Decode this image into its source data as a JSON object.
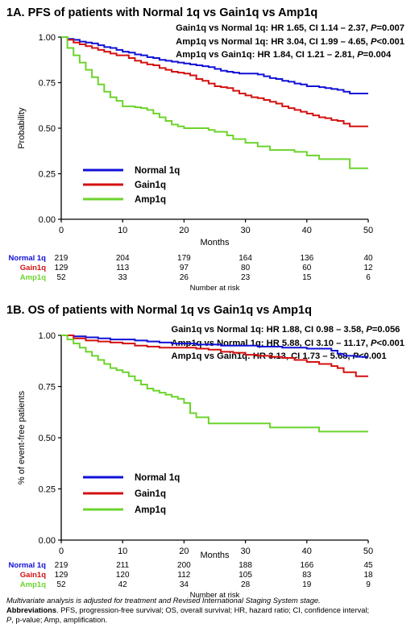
{
  "panels": [
    {
      "id": "A",
      "title": "1A. PFS of patients with Normal 1q vs Gain1q vs Amp1q",
      "stats": [
        {
          "text": "Gain1q vs Normal 1q: HR 1.65, CI 1.14 – 2.37, ",
          "p_label": "P",
          "p_value": "=0.007"
        },
        {
          "text": "Amp1q vs Normal 1q: HR 3.04, CI 1.99 – 4.65, ",
          "p_label": "P",
          "p_value": "<0.001"
        },
        {
          "text": "Amp1q vs Gain1q: HR 1.84, CI 1.21 – 2.81, ",
          "p_label": "P",
          "p_value": "=0.004"
        }
      ],
      "chart_data": {
        "type": "line",
        "step": true,
        "xlabel": "Months",
        "ylabel": "Probability",
        "xlim": [
          0,
          50
        ],
        "ylim": [
          0,
          1
        ],
        "xticks": [
          0,
          10,
          20,
          30,
          40,
          50
        ],
        "yticks": [
          "0.00",
          "0.25",
          "0.50",
          "0.75",
          "1.00"
        ],
        "grid": false,
        "legend": "bottom-left",
        "series": [
          {
            "name": "Normal 1q",
            "color": "#1010d8",
            "x": [
              0,
              1,
              2,
              3,
              4,
              5,
              6,
              7,
              8,
              9,
              10,
              11,
              12,
              13,
              14,
              15,
              16,
              17,
              18,
              19,
              20,
              21,
              22,
              23,
              24,
              25,
              26,
              27,
              28,
              29,
              30,
              31,
              32,
              33,
              34,
              35,
              36,
              37,
              38,
              39,
              40,
              41,
              42,
              43,
              44,
              45,
              46,
              47,
              48,
              49,
              50
            ],
            "y": [
              1.0,
              0.99,
              0.985,
              0.975,
              0.97,
              0.965,
              0.955,
              0.945,
              0.94,
              0.93,
              0.92,
              0.915,
              0.905,
              0.9,
              0.89,
              0.885,
              0.875,
              0.87,
              0.865,
              0.86,
              0.855,
              0.85,
              0.845,
              0.84,
              0.835,
              0.825,
              0.815,
              0.81,
              0.805,
              0.8,
              0.8,
              0.8,
              0.795,
              0.785,
              0.775,
              0.77,
              0.76,
              0.755,
              0.745,
              0.74,
              0.73,
              0.73,
              0.725,
              0.72,
              0.715,
              0.71,
              0.7,
              0.69,
              0.69,
              0.69,
              0.69
            ]
          },
          {
            "name": "Gain1q",
            "color": "#d41010",
            "x": [
              0,
              1,
              2,
              3,
              4,
              5,
              6,
              7,
              8,
              9,
              10,
              11,
              12,
              13,
              14,
              15,
              16,
              17,
              18,
              19,
              20,
              21,
              22,
              23,
              24,
              25,
              26,
              27,
              28,
              29,
              30,
              31,
              32,
              33,
              34,
              35,
              36,
              37,
              38,
              39,
              40,
              41,
              42,
              43,
              44,
              45,
              46,
              47,
              48,
              49,
              50
            ],
            "y": [
              1.0,
              0.985,
              0.97,
              0.96,
              0.95,
              0.94,
              0.93,
              0.92,
              0.91,
              0.9,
              0.9,
              0.885,
              0.87,
              0.86,
              0.85,
              0.845,
              0.83,
              0.82,
              0.81,
              0.805,
              0.8,
              0.79,
              0.77,
              0.76,
              0.745,
              0.73,
              0.725,
              0.72,
              0.705,
              0.69,
              0.68,
              0.67,
              0.665,
              0.655,
              0.645,
              0.635,
              0.62,
              0.61,
              0.6,
              0.59,
              0.58,
              0.57,
              0.56,
              0.555,
              0.545,
              0.54,
              0.525,
              0.51,
              0.51,
              0.51,
              0.51
            ]
          },
          {
            "name": "Amp1q",
            "color": "#6cd42c",
            "x": [
              0,
              1,
              2,
              3,
              4,
              5,
              6,
              7,
              8,
              9,
              10,
              11,
              12,
              13,
              14,
              15,
              16,
              17,
              18,
              19,
              20,
              21,
              22,
              23,
              24,
              25,
              26,
              27,
              28,
              29,
              30,
              31,
              32,
              33,
              34,
              35,
              36,
              37,
              38,
              39,
              40,
              41,
              42,
              43,
              44,
              45,
              46,
              47,
              48,
              49,
              50
            ],
            "y": [
              1.0,
              0.94,
              0.9,
              0.86,
              0.82,
              0.78,
              0.74,
              0.7,
              0.67,
              0.65,
              0.62,
              0.62,
              0.615,
              0.61,
              0.6,
              0.58,
              0.56,
              0.54,
              0.52,
              0.51,
              0.5,
              0.5,
              0.5,
              0.5,
              0.49,
              0.48,
              0.48,
              0.46,
              0.44,
              0.44,
              0.42,
              0.42,
              0.4,
              0.4,
              0.38,
              0.38,
              0.38,
              0.38,
              0.37,
              0.37,
              0.35,
              0.35,
              0.33,
              0.33,
              0.33,
              0.33,
              0.33,
              0.28,
              0.28,
              0.28,
              0.28
            ]
          }
        ]
      },
      "risk_table": {
        "title": "Number at risk",
        "rows": [
          {
            "label": "Normal 1q",
            "color": "#1010d8",
            "values": [
              "219",
              "204",
              "179",
              "164",
              "136",
              "40"
            ]
          },
          {
            "label": "Gain1q",
            "color": "#d41010",
            "values": [
              "129",
              "113",
              "97",
              "80",
              "60",
              "12"
            ]
          },
          {
            "label": "Amp1q",
            "color": "#6cd42c",
            "values": [
              "52",
              "33",
              "26",
              "23",
              "15",
              "6"
            ]
          }
        ]
      }
    },
    {
      "id": "B",
      "title": "1B. OS of patients with Normal 1q vs Gain1q vs Amp1q",
      "stats": [
        {
          "text": "Gain1q vs Normal 1q: HR 1.88, CI 0.98 – 3.58, ",
          "p_label": "P",
          "p_value": "=0.056"
        },
        {
          "text": "Amp1q vs Normal 1q: HR 5.88, CI 3.10 – 11.17, ",
          "p_label": "P",
          "p_value": "<0.001"
        },
        {
          "text": "Amp1q vs Gain1q: HR 3.13, CI 1.73 – 5.68, ",
          "p_label": "P",
          "p_value": "<0.001"
        }
      ],
      "chart_data": {
        "type": "line",
        "step": true,
        "xlabel": "Months",
        "ylabel": "% of event-free patients",
        "xlim": [
          0,
          50
        ],
        "ylim": [
          0,
          1
        ],
        "xticks": [
          0,
          10,
          20,
          30,
          40,
          50
        ],
        "yticks": [
          "0.00",
          "0.25",
          "0.50",
          "0.75",
          "1.00"
        ],
        "grid": false,
        "legend": "bottom-left",
        "series": [
          {
            "name": "Normal 1q",
            "color": "#1010d8",
            "x": [
              0,
              2,
              4,
              6,
              8,
              10,
              12,
              14,
              16,
              18,
              20,
              22,
              24,
              26,
              28,
              30,
              32,
              34,
              36,
              38,
              40,
              42,
              44,
              45,
              46,
              48,
              50
            ],
            "y": [
              1.0,
              0.995,
              0.99,
              0.985,
              0.98,
              0.98,
              0.975,
              0.97,
              0.965,
              0.96,
              0.96,
              0.955,
              0.955,
              0.95,
              0.95,
              0.95,
              0.945,
              0.945,
              0.94,
              0.94,
              0.935,
              0.935,
              0.925,
              0.91,
              0.9,
              0.895,
              0.895
            ]
          },
          {
            "name": "Gain1q",
            "color": "#d41010",
            "x": [
              0,
              2,
              4,
              6,
              8,
              10,
              12,
              14,
              16,
              18,
              20,
              22,
              24,
              26,
              28,
              30,
              32,
              34,
              36,
              38,
              40,
              42,
              44,
              45,
              46,
              48,
              50
            ],
            "y": [
              1.0,
              0.985,
              0.975,
              0.97,
              0.965,
              0.96,
              0.95,
              0.945,
              0.94,
              0.94,
              0.94,
              0.935,
              0.93,
              0.92,
              0.915,
              0.905,
              0.9,
              0.895,
              0.89,
              0.88,
              0.87,
              0.86,
              0.85,
              0.84,
              0.82,
              0.8,
              0.8
            ]
          },
          {
            "name": "Amp1q",
            "color": "#6cd42c",
            "x": [
              0,
              1,
              2,
              3,
              4,
              5,
              6,
              7,
              8,
              9,
              10,
              11,
              12,
              13,
              14,
              15,
              16,
              17,
              18,
              19,
              20,
              21,
              22,
              24,
              26,
              28,
              30,
              32,
              34,
              36,
              38,
              40,
              42,
              44,
              46,
              48,
              50
            ],
            "y": [
              1.0,
              0.98,
              0.96,
              0.94,
              0.92,
              0.9,
              0.88,
              0.86,
              0.84,
              0.83,
              0.82,
              0.8,
              0.78,
              0.76,
              0.74,
              0.73,
              0.72,
              0.71,
              0.7,
              0.69,
              0.67,
              0.62,
              0.6,
              0.57,
              0.57,
              0.57,
              0.57,
              0.57,
              0.55,
              0.55,
              0.55,
              0.55,
              0.53,
              0.53,
              0.53,
              0.53,
              0.53
            ]
          }
        ]
      },
      "risk_table": {
        "title": "Number at risk",
        "rows": [
          {
            "label": "Normal 1q",
            "color": "#1010d8",
            "values": [
              "219",
              "211",
              "200",
              "188",
              "166",
              "45"
            ]
          },
          {
            "label": "Gain1q",
            "color": "#d41010",
            "values": [
              "129",
              "120",
              "112",
              "105",
              "83",
              "18"
            ]
          },
          {
            "label": "Amp1q",
            "color": "#6cd42c",
            "values": [
              "52",
              "42",
              "34",
              "28",
              "19",
              "9"
            ]
          }
        ]
      }
    }
  ],
  "footnote": {
    "adjustment": "Multivariate analysis is adjusted for treatment and Revised International Staging System stage.",
    "abbr_heading": "Abbreviations",
    "abbr_text": ". PFS, progression-free survival; OS, overall survival; HR, hazard ratio; CI, confidence interval;",
    "abbr_p": "P",
    "abbr_tail": ", p-value; Amp, amplification."
  }
}
